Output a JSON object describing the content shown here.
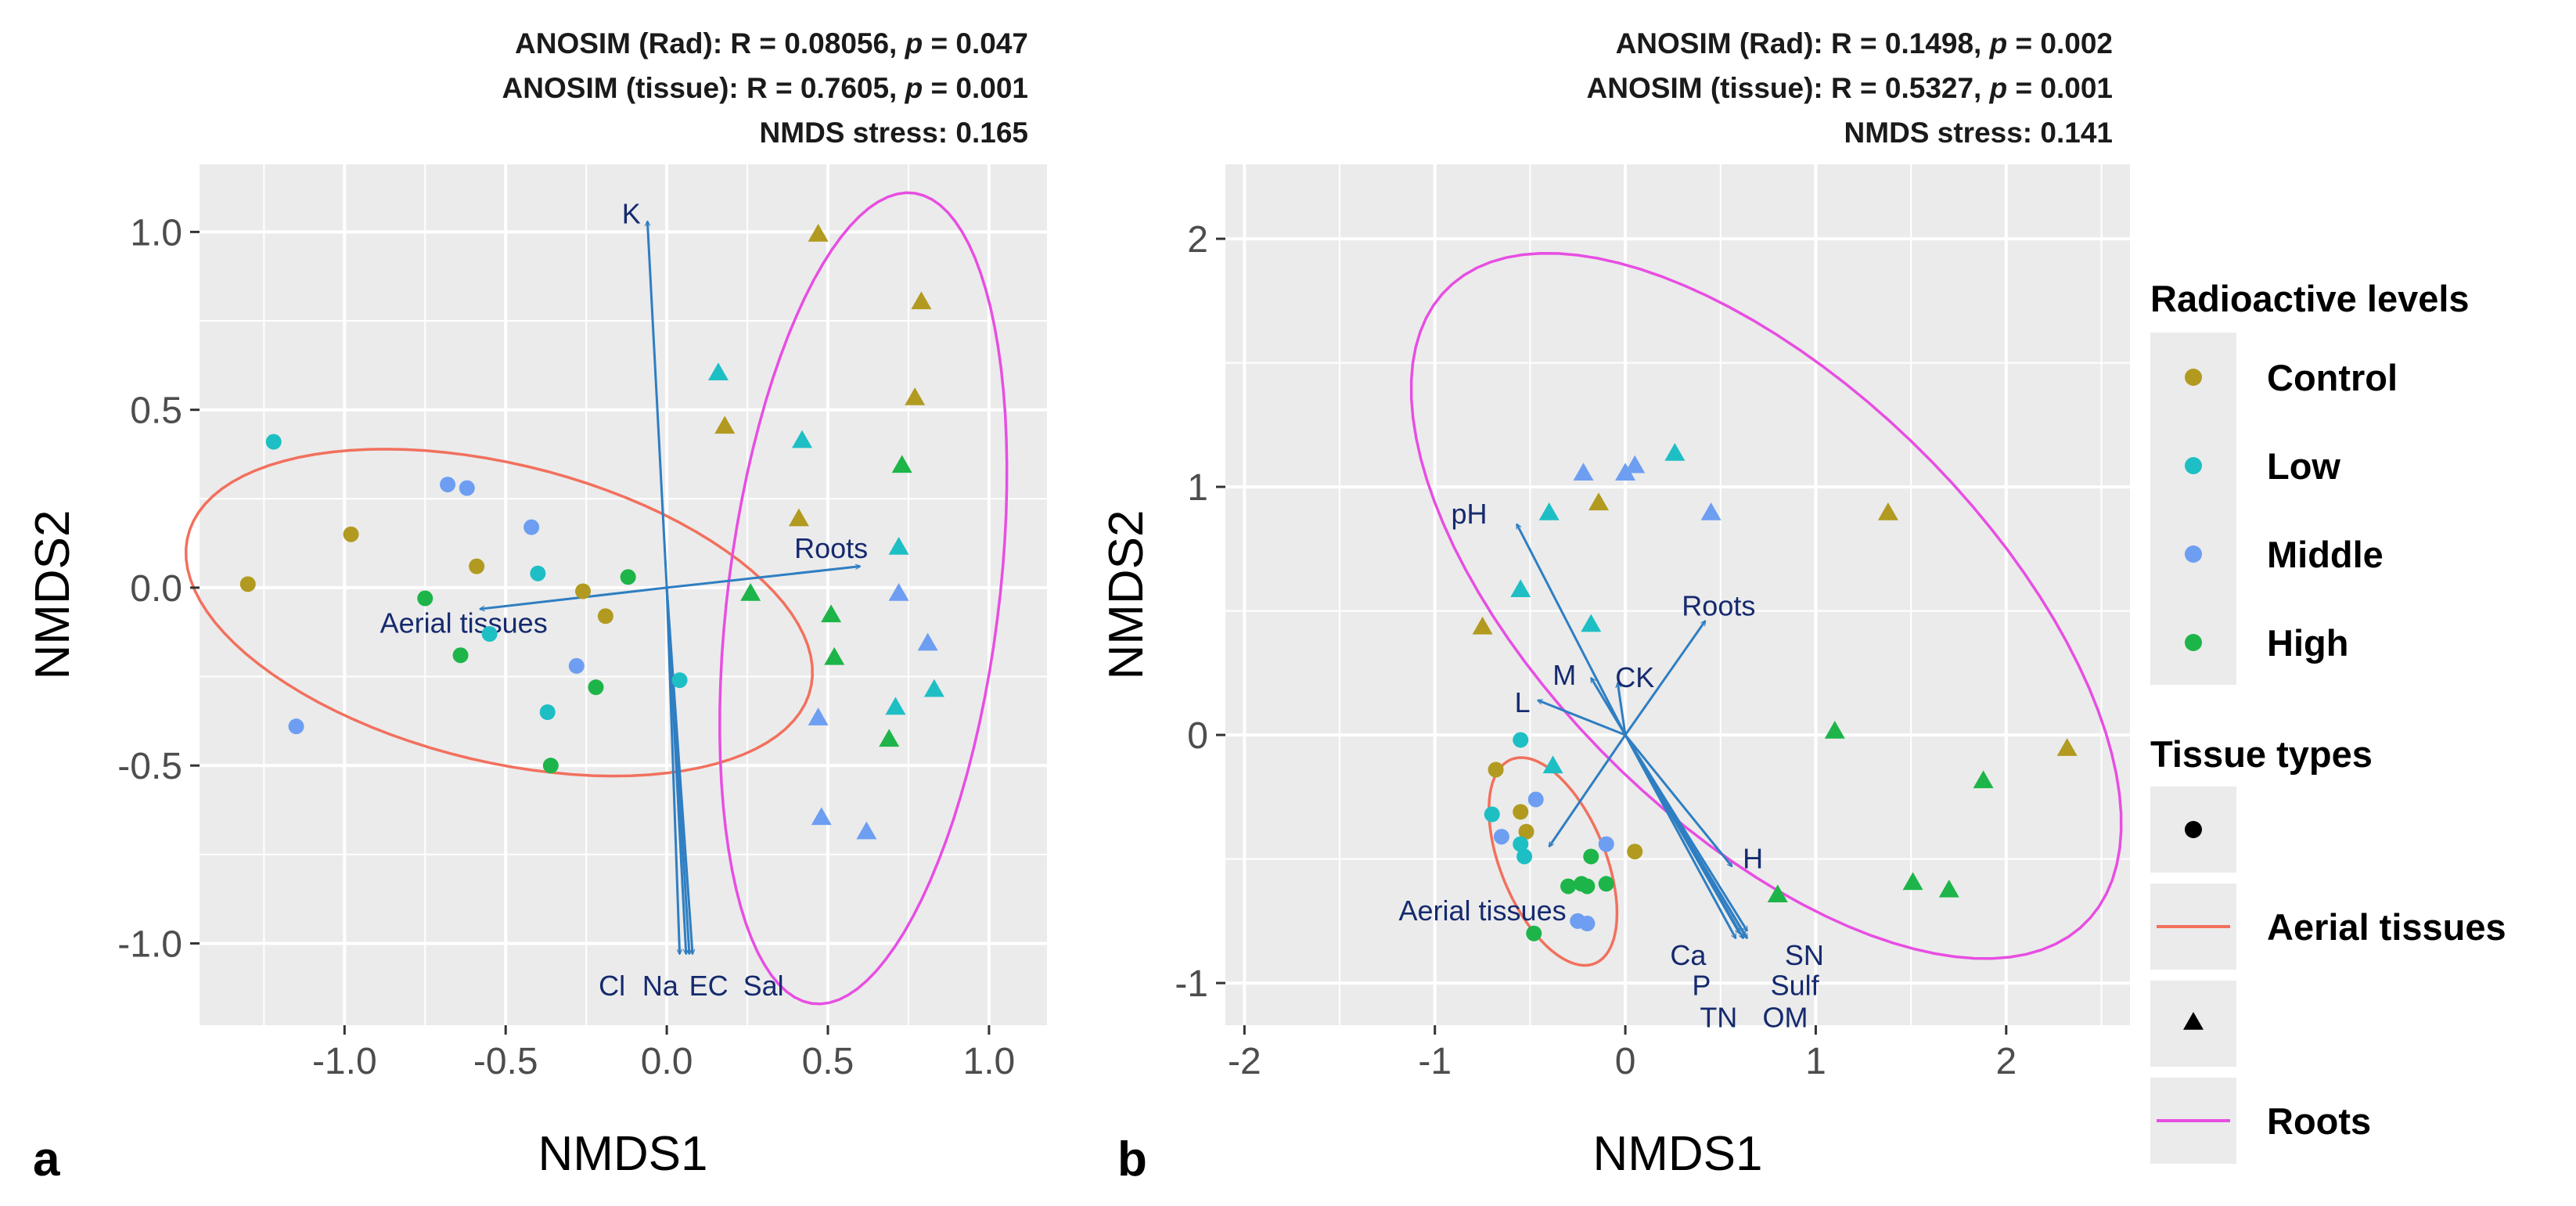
{
  "chart_data": [
    {
      "type": "scatter",
      "panel_label": "a",
      "title_lines": [
        {
          "pre": "ANOSIM (Rad): R = 0.08056, ",
          "p": "p",
          "post": " = 0.047"
        },
        {
          "pre": "ANOSIM (tissue): R = 0.7605, ",
          "p": "p",
          "post": " = 0.001"
        },
        {
          "pre": "NMDS stress: 0.165",
          "p": "",
          "post": ""
        }
      ],
      "xlabel": "NMDS1",
      "ylabel": "NMDS2",
      "xlim": [
        -1.45,
        1.18
      ],
      "ylim": [
        -1.23,
        1.19
      ],
      "xticks": [
        -1.0,
        -0.5,
        0.0,
        0.5,
        1.0
      ],
      "xtick_labels": [
        "-1.0",
        "-0.5",
        "0.0",
        "0.5",
        "1.0"
      ],
      "yticks": [
        -1.0,
        -0.5,
        0.0,
        0.5,
        1.0
      ],
      "ytick_labels": [
        "-1.0",
        "-0.5",
        "0.0",
        "0.5",
        "1.0"
      ],
      "points": [
        {
          "x": -1.22,
          "y": 0.41,
          "level": "Low",
          "tissue": "Aerial tissues"
        },
        {
          "x": -1.3,
          "y": 0.01,
          "level": "Control",
          "tissue": "Aerial tissues"
        },
        {
          "x": -0.98,
          "y": 0.15,
          "level": "Control",
          "tissue": "Aerial tissues"
        },
        {
          "x": -1.15,
          "y": -0.39,
          "level": "Middle",
          "tissue": "Aerial tissues"
        },
        {
          "x": -0.68,
          "y": 0.29,
          "level": "Middle",
          "tissue": "Aerial tissues"
        },
        {
          "x": -0.62,
          "y": 0.28,
          "level": "Middle",
          "tissue": "Aerial tissues"
        },
        {
          "x": -0.42,
          "y": 0.17,
          "level": "Middle",
          "tissue": "Aerial tissues"
        },
        {
          "x": -0.59,
          "y": 0.06,
          "level": "Control",
          "tissue": "Aerial tissues"
        },
        {
          "x": -0.4,
          "y": 0.04,
          "level": "Low",
          "tissue": "Aerial tissues"
        },
        {
          "x": -0.26,
          "y": -0.01,
          "level": "Control",
          "tissue": "Aerial tissues"
        },
        {
          "x": -0.12,
          "y": 0.03,
          "level": "High",
          "tissue": "Aerial tissues"
        },
        {
          "x": -0.19,
          "y": -0.08,
          "level": "Control",
          "tissue": "Aerial tissues"
        },
        {
          "x": -0.75,
          "y": -0.03,
          "level": "High",
          "tissue": "Aerial tissues"
        },
        {
          "x": -0.55,
          "y": -0.13,
          "level": "Low",
          "tissue": "Aerial tissues"
        },
        {
          "x": -0.64,
          "y": -0.19,
          "level": "High",
          "tissue": "Aerial tissues"
        },
        {
          "x": -0.28,
          "y": -0.22,
          "level": "Middle",
          "tissue": "Aerial tissues"
        },
        {
          "x": -0.22,
          "y": -0.28,
          "level": "High",
          "tissue": "Aerial tissues"
        },
        {
          "x": -0.37,
          "y": -0.35,
          "level": "Low",
          "tissue": "Aerial tissues"
        },
        {
          "x": 0.04,
          "y": -0.26,
          "level": "Low",
          "tissue": "Aerial tissues"
        },
        {
          "x": -0.36,
          "y": -0.5,
          "level": "High",
          "tissue": "Aerial tissues"
        },
        {
          "x": 0.47,
          "y": 0.99,
          "level": "Control",
          "tissue": "Roots"
        },
        {
          "x": 0.79,
          "y": 0.8,
          "level": "Control",
          "tissue": "Roots"
        },
        {
          "x": 0.16,
          "y": 0.6,
          "level": "Low",
          "tissue": "Roots"
        },
        {
          "x": 0.77,
          "y": 0.53,
          "level": "Control",
          "tissue": "Roots"
        },
        {
          "x": 0.18,
          "y": 0.45,
          "level": "Control",
          "tissue": "Roots"
        },
        {
          "x": 0.42,
          "y": 0.41,
          "level": "Low",
          "tissue": "Roots"
        },
        {
          "x": 0.73,
          "y": 0.34,
          "level": "High",
          "tissue": "Roots"
        },
        {
          "x": 0.41,
          "y": 0.19,
          "level": "Control",
          "tissue": "Roots"
        },
        {
          "x": 0.72,
          "y": 0.11,
          "level": "Low",
          "tissue": "Roots"
        },
        {
          "x": 0.26,
          "y": -0.02,
          "level": "High",
          "tissue": "Roots"
        },
        {
          "x": 0.51,
          "y": -0.08,
          "level": "High",
          "tissue": "Roots"
        },
        {
          "x": 0.72,
          "y": -0.02,
          "level": "Middle",
          "tissue": "Roots"
        },
        {
          "x": 0.81,
          "y": -0.16,
          "level": "Middle",
          "tissue": "Roots"
        },
        {
          "x": 0.52,
          "y": -0.2,
          "level": "High",
          "tissue": "Roots"
        },
        {
          "x": 0.83,
          "y": -0.29,
          "level": "Low",
          "tissue": "Roots"
        },
        {
          "x": 0.71,
          "y": -0.34,
          "level": "Low",
          "tissue": "Roots"
        },
        {
          "x": 0.47,
          "y": -0.37,
          "level": "Middle",
          "tissue": "Roots"
        },
        {
          "x": 0.69,
          "y": -0.43,
          "level": "High",
          "tissue": "Roots"
        },
        {
          "x": 0.48,
          "y": -0.65,
          "level": "Middle",
          "tissue": "Roots"
        },
        {
          "x": 0.62,
          "y": -0.69,
          "level": "Middle",
          "tissue": "Roots"
        }
      ],
      "ellipses": [
        {
          "tissue": "Aerial tissues",
          "cx": -0.52,
          "cy": -0.07,
          "rx": 0.99,
          "ry": 0.42,
          "angle_deg": -12
        },
        {
          "tissue": "Roots",
          "cx": 0.61,
          "cy": -0.03,
          "rx": 1.15,
          "ry": 0.42,
          "angle_deg": 82
        }
      ],
      "vectors": [
        {
          "label": "K",
          "x": -0.06,
          "y": 1.03,
          "lx": -0.11,
          "ly": 1.05
        },
        {
          "label": "Roots",
          "x": 0.6,
          "y": 0.06,
          "lx": 0.51,
          "ly": 0.11
        },
        {
          "label": "Aerial tissues",
          "x": -0.58,
          "y": -0.06,
          "lx": -0.63,
          "ly": -0.1
        },
        {
          "label": "Cl",
          "x": 0.04,
          "y": -1.03,
          "lx": -0.17,
          "ly": -1.12
        },
        {
          "label": "Na",
          "x": 0.06,
          "y": -1.03,
          "lx": -0.02,
          "ly": -1.12
        },
        {
          "label": "EC",
          "x": 0.07,
          "y": -1.03,
          "lx": 0.13,
          "ly": -1.12
        },
        {
          "label": "Sal",
          "x": 0.08,
          "y": -1.03,
          "lx": 0.3,
          "ly": -1.12
        }
      ]
    },
    {
      "type": "scatter",
      "panel_label": "b",
      "title_lines": [
        {
          "pre": "ANOSIM (Rad): R = 0.1498, ",
          "p": "p",
          "post": " = 0.002"
        },
        {
          "pre": "ANOSIM (tissue): R = 0.5327, ",
          "p": "p",
          "post": " = 0.001"
        },
        {
          "pre": "NMDS stress: 0.141",
          "p": "",
          "post": ""
        }
      ],
      "xlabel": "NMDS1",
      "ylabel": "NMDS2",
      "xlim": [
        -2.1,
        2.65
      ],
      "ylim": [
        -1.17,
        2.3
      ],
      "xticks": [
        -2,
        -1,
        0,
        1,
        2
      ],
      "xtick_labels": [
        "-2",
        "-1",
        "0",
        "1",
        "2"
      ],
      "yticks": [
        -1,
        0,
        1,
        2
      ],
      "ytick_labels": [
        "-1",
        "0",
        "1",
        "2"
      ],
      "points": [
        {
          "x": -0.55,
          "y": -0.02,
          "level": "Low",
          "tissue": "Aerial tissues"
        },
        {
          "x": -0.68,
          "y": -0.14,
          "level": "Control",
          "tissue": "Aerial tissues"
        },
        {
          "x": -0.55,
          "y": -0.31,
          "level": "Control",
          "tissue": "Aerial tissues"
        },
        {
          "x": -0.7,
          "y": -0.32,
          "level": "Low",
          "tissue": "Aerial tissues"
        },
        {
          "x": -0.52,
          "y": -0.39,
          "level": "Control",
          "tissue": "Aerial tissues"
        },
        {
          "x": -0.55,
          "y": -0.44,
          "level": "Low",
          "tissue": "Aerial tissues"
        },
        {
          "x": -0.65,
          "y": -0.41,
          "level": "Middle",
          "tissue": "Aerial tissues"
        },
        {
          "x": -0.53,
          "y": -0.49,
          "level": "Low",
          "tissue": "Aerial tissues"
        },
        {
          "x": -0.47,
          "y": -0.26,
          "level": "Middle",
          "tissue": "Aerial tissues"
        },
        {
          "x": 0.05,
          "y": -0.47,
          "level": "Control",
          "tissue": "Aerial tissues"
        },
        {
          "x": -0.1,
          "y": -0.44,
          "level": "Middle",
          "tissue": "Aerial tissues"
        },
        {
          "x": -0.18,
          "y": -0.49,
          "level": "High",
          "tissue": "Aerial tissues"
        },
        {
          "x": -0.3,
          "y": -0.61,
          "level": "High",
          "tissue": "Aerial tissues"
        },
        {
          "x": -0.2,
          "y": -0.61,
          "level": "High",
          "tissue": "Aerial tissues"
        },
        {
          "x": -0.1,
          "y": -0.6,
          "level": "High",
          "tissue": "Aerial tissues"
        },
        {
          "x": -0.23,
          "y": -0.6,
          "level": "High",
          "tissue": "Aerial tissues"
        },
        {
          "x": -0.25,
          "y": -0.75,
          "level": "Middle",
          "tissue": "Aerial tissues"
        },
        {
          "x": -0.2,
          "y": -0.76,
          "level": "Middle",
          "tissue": "Aerial tissues"
        },
        {
          "x": -0.48,
          "y": -0.8,
          "level": "High",
          "tissue": "Aerial tissues"
        },
        {
          "x": 0.26,
          "y": 1.13,
          "level": "Low",
          "tissue": "Roots"
        },
        {
          "x": -0.22,
          "y": 1.05,
          "level": "Middle",
          "tissue": "Roots"
        },
        {
          "x": 0.0,
          "y": 1.05,
          "level": "Middle",
          "tissue": "Roots"
        },
        {
          "x": 0.05,
          "y": 1.08,
          "level": "Middle",
          "tissue": "Roots"
        },
        {
          "x": -0.14,
          "y": 0.93,
          "level": "Control",
          "tissue": "Roots"
        },
        {
          "x": -0.4,
          "y": 0.89,
          "level": "Low",
          "tissue": "Roots"
        },
        {
          "x": 0.45,
          "y": 0.89,
          "level": "Middle",
          "tissue": "Roots"
        },
        {
          "x": 1.38,
          "y": 0.89,
          "level": "Control",
          "tissue": "Roots"
        },
        {
          "x": -0.55,
          "y": 0.58,
          "level": "Low",
          "tissue": "Roots"
        },
        {
          "x": -0.18,
          "y": 0.44,
          "level": "Low",
          "tissue": "Roots"
        },
        {
          "x": -0.75,
          "y": 0.43,
          "level": "Control",
          "tissue": "Roots"
        },
        {
          "x": 1.1,
          "y": 0.01,
          "level": "High",
          "tissue": "Roots"
        },
        {
          "x": -0.38,
          "y": -0.13,
          "level": "Low",
          "tissue": "Roots"
        },
        {
          "x": 2.32,
          "y": -0.06,
          "level": "Control",
          "tissue": "Roots"
        },
        {
          "x": 1.88,
          "y": -0.19,
          "level": "High",
          "tissue": "Roots"
        },
        {
          "x": 1.51,
          "y": -0.6,
          "level": "High",
          "tissue": "Roots"
        },
        {
          "x": 1.7,
          "y": -0.63,
          "level": "High",
          "tissue": "Roots"
        },
        {
          "x": 0.8,
          "y": -0.65,
          "level": "High",
          "tissue": "Roots"
        }
      ],
      "ellipses": [
        {
          "tissue": "Aerial tissues",
          "cx": -0.38,
          "cy": -0.51,
          "rx": 0.47,
          "ry": 0.26,
          "angle_deg": -57
        },
        {
          "tissue": "Roots",
          "cx": 0.74,
          "cy": 0.52,
          "rx": 2.13,
          "ry": 0.98,
          "angle_deg": -33
        }
      ],
      "vectors": [
        {
          "label": "pH",
          "x": -0.57,
          "y": 0.85,
          "lx": -0.82,
          "ly": 0.89
        },
        {
          "label": "Roots",
          "x": 0.42,
          "y": 0.46,
          "lx": 0.49,
          "ly": 0.52
        },
        {
          "label": "M",
          "x": -0.18,
          "y": 0.23,
          "lx": -0.32,
          "ly": 0.24
        },
        {
          "label": "CK",
          "x": -0.04,
          "y": 0.21,
          "lx": 0.05,
          "ly": 0.23
        },
        {
          "label": "L",
          "x": -0.46,
          "y": 0.14,
          "lx": -0.54,
          "ly": 0.13
        },
        {
          "label": "H",
          "x": 0.56,
          "y": -0.53,
          "lx": 0.67,
          "ly": -0.5
        },
        {
          "label": "Aerial tissues",
          "x": -0.4,
          "y": -0.45,
          "lx": -0.75,
          "ly": -0.71
        },
        {
          "label": "Ca",
          "x": 0.6,
          "y": -0.8,
          "lx": 0.33,
          "ly": -0.89
        },
        {
          "label": "P",
          "x": 0.58,
          "y": -0.82,
          "lx": 0.4,
          "ly": -1.01
        },
        {
          "label": "TN",
          "x": 0.62,
          "y": -0.82,
          "lx": 0.49,
          "ly": -1.14
        },
        {
          "label": "SN",
          "x": 0.64,
          "y": -0.79,
          "lx": 0.94,
          "ly": -0.89
        },
        {
          "label": "Sulf",
          "x": 0.63,
          "y": -0.81,
          "lx": 0.89,
          "ly": -1.01
        },
        {
          "label": "OM",
          "x": 0.64,
          "y": -0.82,
          "lx": 0.84,
          "ly": -1.14
        }
      ]
    }
  ],
  "legend": {
    "levels_title": "Radioactive levels",
    "levels": [
      {
        "label": "Control",
        "color": "#b19a1f"
      },
      {
        "label": "Low",
        "color": "#1ebfc4"
      },
      {
        "label": "Middle",
        "color": "#6d9ef2"
      },
      {
        "label": "High",
        "color": "#1db549"
      }
    ],
    "tissue_title": "Tissue types",
    "tissues": [
      {
        "label": "",
        "shape": "circle",
        "color": "#000000"
      },
      {
        "label": "Aerial tissues",
        "line_color": "#f2705e"
      },
      {
        "label": "",
        "shape": "triangle",
        "color": "#000000"
      },
      {
        "label": "Roots",
        "line_color": "#e74ee2"
      }
    ]
  },
  "colors": {
    "panel_bg": "#ebebeb",
    "grid": "#ffffff",
    "vector": "#2f7ec2",
    "vector_label": "#152a6e",
    "aerial_ellipse": "#f2705e",
    "roots_ellipse": "#e74ee2"
  }
}
